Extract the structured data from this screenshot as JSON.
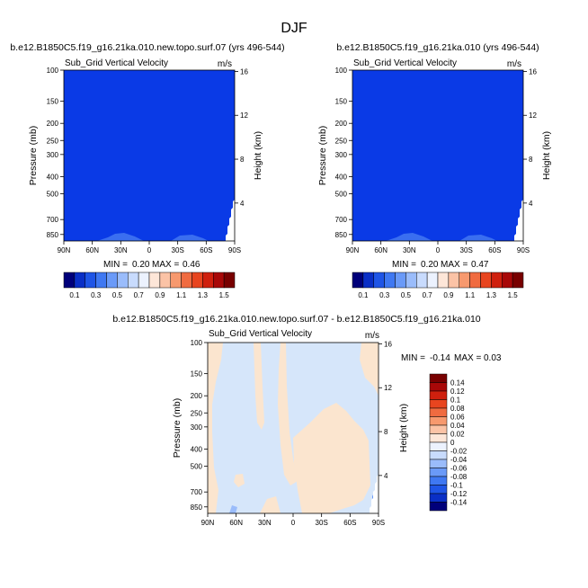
{
  "figure_title": "DJF",
  "colors": {
    "fill_blue": "#0a3ae6",
    "fill_light_blue": "#d6e6fa",
    "fill_light_orange": "#fbe5cf",
    "fill_mid_blue": "#3a6ef0"
  },
  "chart_data": [
    {
      "type": "heatmap",
      "panel": "top-left",
      "title": "b.e12.B1850C5.f19_g16.21ka.010.new.topo.surf.07 (yrs 496-544)",
      "subtitle": "Sub_Grid Vertical Velocity",
      "units": "m/s",
      "ylabel": "Pressure (mb)",
      "y2label": "Height (km)",
      "x_ticks": [
        "90N",
        "60N",
        "30N",
        "0",
        "30S",
        "60S",
        "90S"
      ],
      "x_values": [
        90,
        60,
        30,
        0,
        -30,
        -60,
        -90
      ],
      "y_ticks": [
        "100",
        "150",
        "200",
        "250",
        "300",
        "400",
        "500",
        "700",
        "850"
      ],
      "y_values": [
        100,
        150,
        200,
        250,
        300,
        400,
        500,
        700,
        850
      ],
      "ylim": [
        100,
        925
      ],
      "y2_ticks": [
        "16",
        "12",
        "8",
        "4"
      ],
      "y2_values": [
        16,
        12,
        8,
        4
      ],
      "min_label": "MIN =",
      "min_value": "0.20",
      "max_label": "MAX =",
      "max_value": "0.46",
      "colorbar_labels": [
        "0.1",
        "0.3",
        "0.5",
        "0.7",
        "0.9",
        "1.1",
        "1.3",
        "1.5"
      ],
      "colorbar_colors": [
        "#00007a",
        "#0a2fc6",
        "#1f55e6",
        "#3f78f2",
        "#6a9af8",
        "#9abcfb",
        "#c8dbfd",
        "#ecf2fe",
        "#fde6d8",
        "#fbc3a6",
        "#f7996e",
        "#f06b40",
        "#e8451f",
        "#cf200e",
        "#a80808",
        "#780000"
      ],
      "field_value_range": "0.1 - 0.3"
    },
    {
      "type": "heatmap",
      "panel": "top-right",
      "title": "b.e12.B1850C5.f19_g16.21ka.010 (yrs 496-544)",
      "subtitle": "Sub_Grid Vertical Velocity",
      "units": "m/s",
      "ylabel": "Pressure (mb)",
      "y2label": "Height (km)",
      "x_ticks": [
        "90N",
        "60N",
        "30N",
        "0",
        "30S",
        "60S",
        "90S"
      ],
      "x_values": [
        90,
        60,
        30,
        0,
        -30,
        -60,
        -90
      ],
      "y_ticks": [
        "100",
        "150",
        "200",
        "250",
        "300",
        "400",
        "500",
        "700",
        "850"
      ],
      "y_values": [
        100,
        150,
        200,
        250,
        300,
        400,
        500,
        700,
        850
      ],
      "ylim": [
        100,
        925
      ],
      "y2_ticks": [
        "16",
        "12",
        "8",
        "4"
      ],
      "y2_values": [
        16,
        12,
        8,
        4
      ],
      "min_label": "MIN =",
      "min_value": "0.20",
      "max_label": "MAX =",
      "max_value": "0.47",
      "colorbar_labels": [
        "0.1",
        "0.3",
        "0.5",
        "0.7",
        "0.9",
        "1.1",
        "1.3",
        "1.5"
      ],
      "colorbar_colors": [
        "#00007a",
        "#0a2fc6",
        "#1f55e6",
        "#3f78f2",
        "#6a9af8",
        "#9abcfb",
        "#c8dbfd",
        "#ecf2fe",
        "#fde6d8",
        "#fbc3a6",
        "#f7996e",
        "#f06b40",
        "#e8451f",
        "#cf200e",
        "#a80808",
        "#780000"
      ],
      "field_value_range": "0.1 - 0.3"
    },
    {
      "type": "heatmap",
      "panel": "bottom",
      "title": "b.e12.B1850C5.f19_g16.21ka.010.new.topo.surf.07 - b.e12.B1850C5.f19_g16.21ka.010",
      "subtitle": "Sub_Grid Vertical Velocity",
      "units": "m/s",
      "ylabel": "Pressure (mb)",
      "y2label": "Height (km)",
      "x_ticks": [
        "90N",
        "60N",
        "30N",
        "0",
        "30S",
        "60S",
        "90S"
      ],
      "x_values": [
        90,
        60,
        30,
        0,
        -30,
        -60,
        -90
      ],
      "y_ticks": [
        "100",
        "150",
        "200",
        "250",
        "300",
        "400",
        "500",
        "700",
        "850"
      ],
      "y_values": [
        100,
        150,
        200,
        250,
        300,
        400,
        500,
        700,
        850
      ],
      "ylim": [
        100,
        925
      ],
      "y2_ticks": [
        "16",
        "12",
        "8",
        "4"
      ],
      "y2_values": [
        16,
        12,
        8,
        4
      ],
      "min_label": "MIN =",
      "min_value": "-0.14",
      "max_label": "MAX =",
      "max_value": "0.03",
      "colorbar_labels": [
        "0.14",
        "0.12",
        "0.1",
        "0.08",
        "0.06",
        "0.04",
        "0.02",
        "0",
        "-0.02",
        "-0.04",
        "-0.06",
        "-0.08",
        "-0.1",
        "-0.12",
        "-0.14"
      ],
      "colorbar_colors": [
        "#780000",
        "#a80808",
        "#cf200e",
        "#e8451f",
        "#f06b40",
        "#f7996e",
        "#fbc3a6",
        "#fde6d8",
        "#ecf2fe",
        "#c8dbfd",
        "#9abcfb",
        "#6a9af8",
        "#3f78f2",
        "#1f55e6",
        "#0a2fc6",
        "#00007a"
      ],
      "field_value_range": "-0.02 - 0.02"
    }
  ]
}
